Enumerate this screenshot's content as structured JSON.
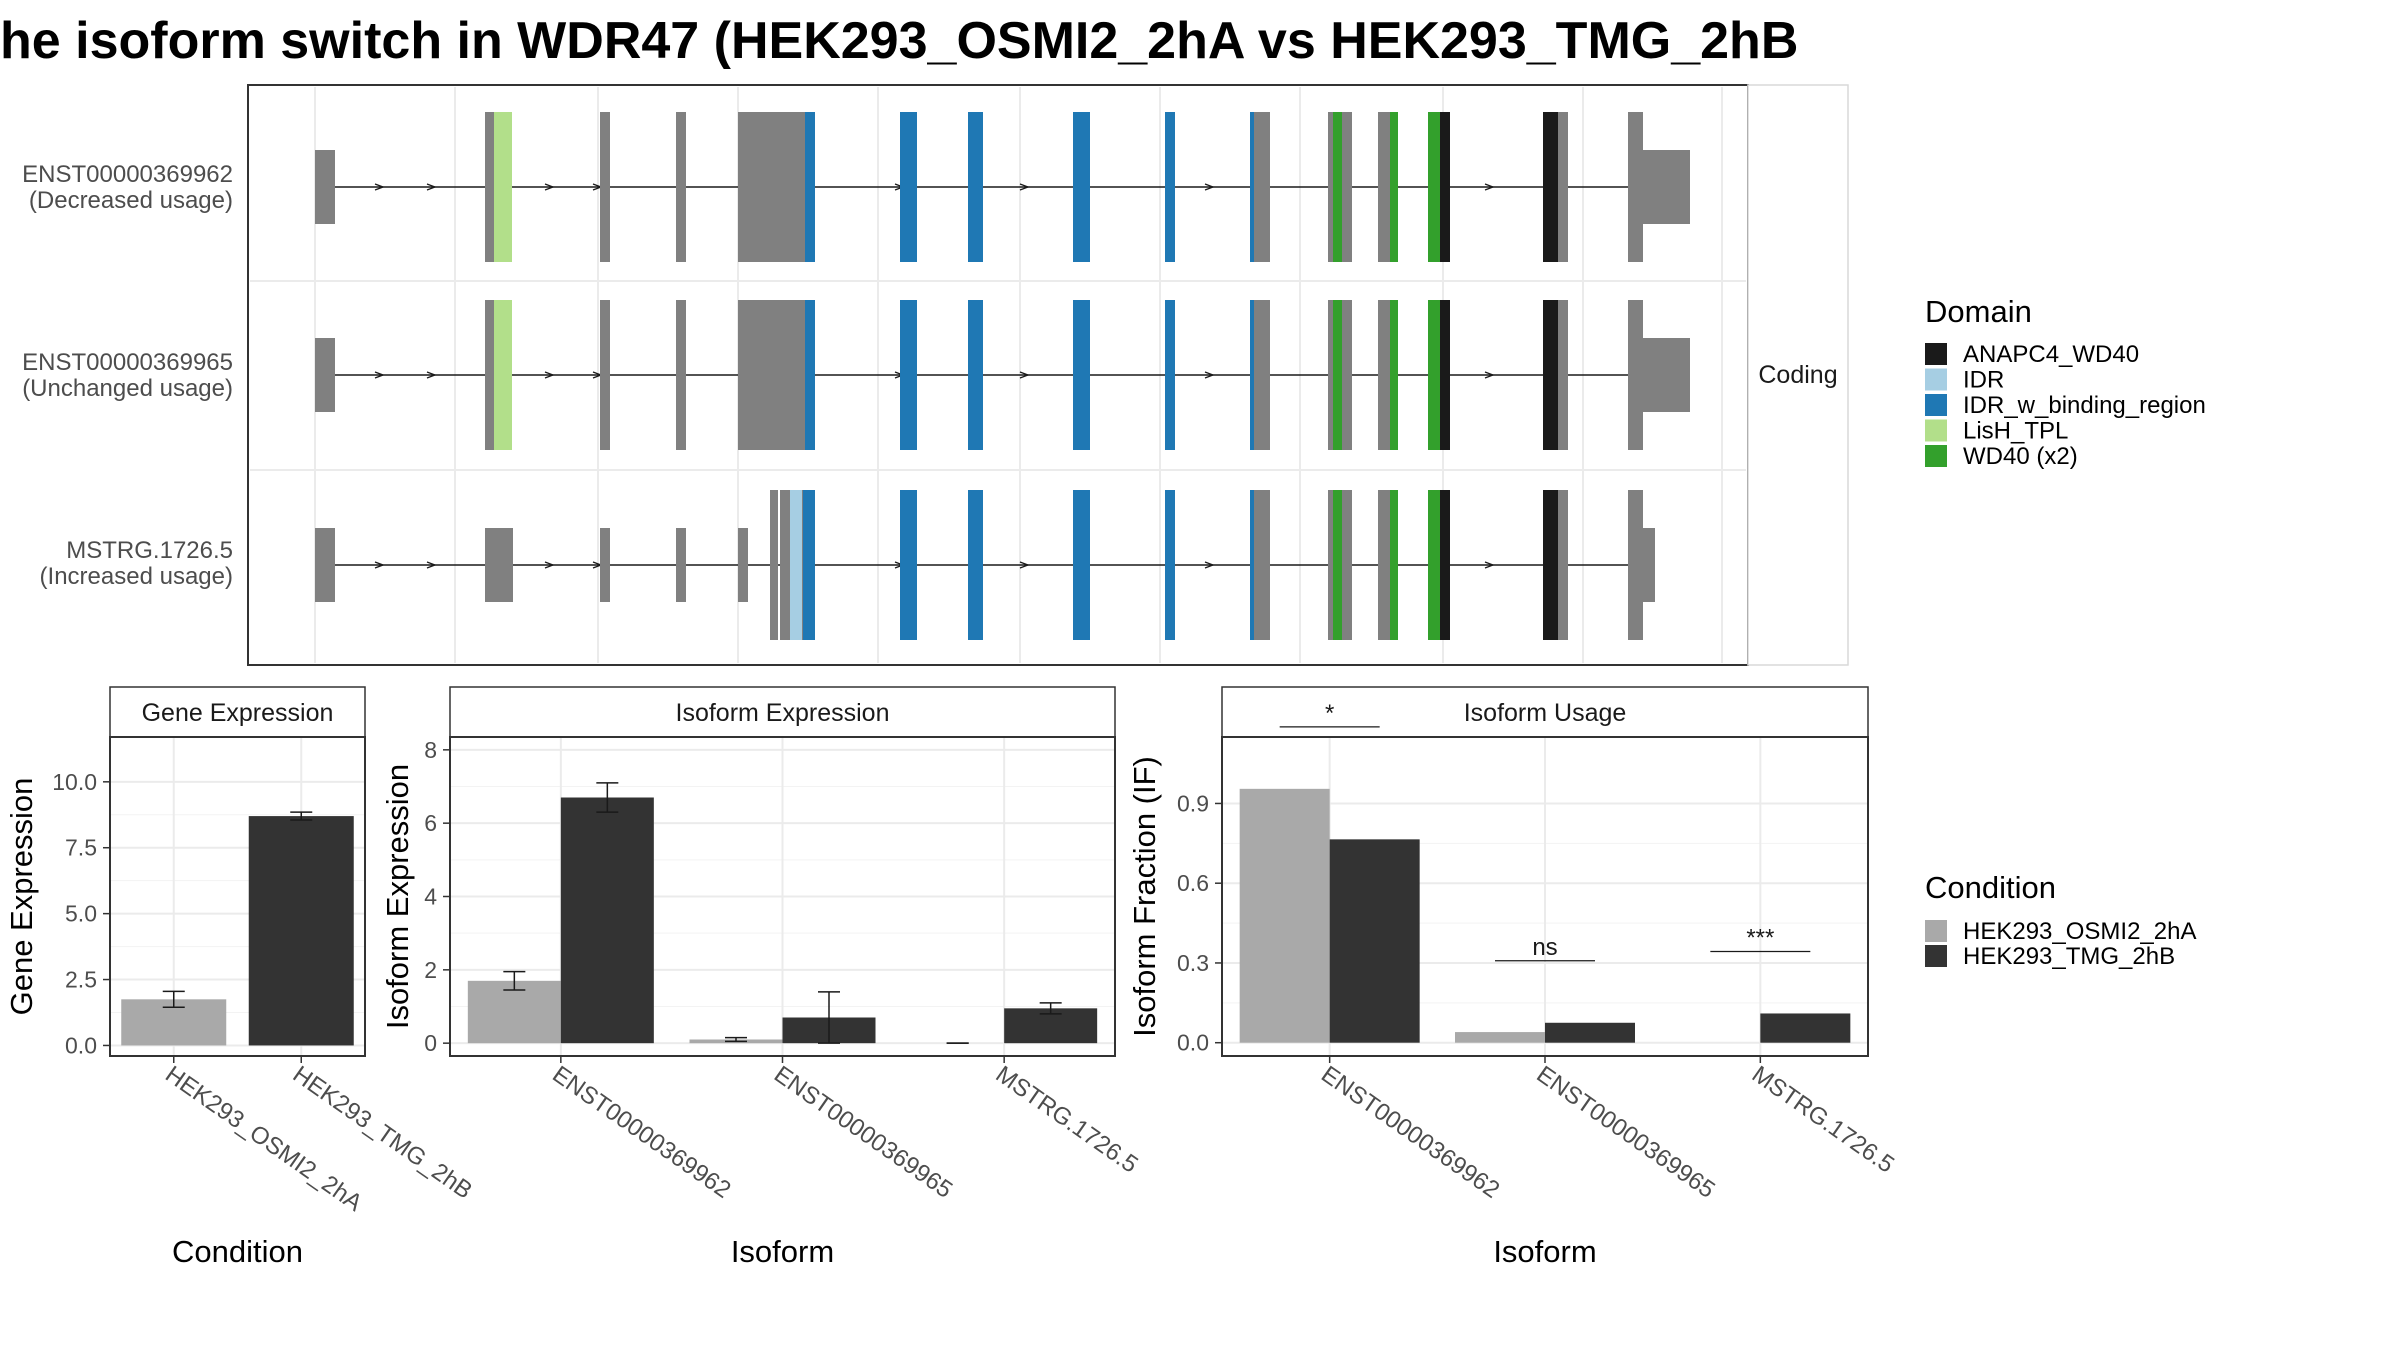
{
  "title": "he isoform switch in WDR47 (HEK293_OSMI2_2hA vs HEK293_TMG_2hB",
  "colors": {
    "exon": "#808080",
    "cond1": "#a9a9a9",
    "cond2": "#333333",
    "grid": "#ebebeb",
    "panel_border": "#333333",
    "strip_fill": "#ffffff"
  },
  "structure": {
    "strip_label": "Coding",
    "isoforms": [
      {
        "id": "ENST00000369962",
        "note": "(Decreased usage)"
      },
      {
        "id": "ENST00000369965",
        "note": "(Unchanged usage)"
      },
      {
        "id": "MSTRG.1726.5",
        "note": "(Increased usage)"
      }
    ],
    "domain_legend": {
      "title": "Domain",
      "items": [
        {
          "name": "ANAPC4_WD40",
          "color": "#1a1a1a"
        },
        {
          "name": "IDR",
          "color": "#a6cee3"
        },
        {
          "name": "IDR_w_binding_region",
          "color": "#1f78b4"
        },
        {
          "name": "LisH_TPL",
          "color": "#b2df8a"
        },
        {
          "name": "WD40 (x2)",
          "color": "#33a02c"
        }
      ]
    }
  },
  "condition_legend": {
    "title": "Condition",
    "items": [
      {
        "name": "HEK293_OSMI2_2hA",
        "color": "#a9a9a9"
      },
      {
        "name": "HEK293_TMG_2hB",
        "color": "#333333"
      }
    ]
  },
  "chart_data": [
    {
      "type": "bar",
      "title": "Gene Expression",
      "xlabel": "Condition",
      "ylabel": "Gene Expression",
      "categories": [
        "HEK293_OSMI2_2hA",
        "HEK293_TMG_2hB"
      ],
      "values": [
        1.75,
        8.7
      ],
      "errors": [
        [
          1.45,
          2.05
        ],
        [
          8.55,
          8.85
        ]
      ],
      "colors": [
        "#a9a9a9",
        "#333333"
      ],
      "ylim": [
        -0.4,
        11.7
      ],
      "yticks": [
        0.0,
        2.5,
        5.0,
        7.5,
        10.0
      ],
      "ytick_labels": [
        "0.0",
        "2.5",
        "5.0",
        "7.5",
        "10.0"
      ]
    },
    {
      "type": "bar",
      "title": "Isoform Expression",
      "xlabel": "Isoform",
      "ylabel": "Isoform Expression",
      "categories": [
        "ENST00000369962",
        "ENST00000369965",
        "MSTRG.1726.5"
      ],
      "series": [
        {
          "name": "HEK293_OSMI2_2hA",
          "values": [
            1.7,
            0.1,
            0.0
          ],
          "errors": [
            [
              1.45,
              1.95
            ],
            [
              0.05,
              0.15
            ],
            [
              0.0,
              0.0
            ]
          ]
        },
        {
          "name": "HEK293_TMG_2hB",
          "values": [
            6.7,
            0.7,
            0.95
          ],
          "errors": [
            [
              6.3,
              7.1
            ],
            [
              0.0,
              1.4
            ],
            [
              0.8,
              1.1
            ]
          ]
        }
      ],
      "ylim": [
        -0.35,
        8.35
      ],
      "yticks": [
        0,
        2,
        4,
        6,
        8
      ],
      "ytick_labels": [
        "0",
        "2",
        "4",
        "6",
        "8"
      ]
    },
    {
      "type": "bar",
      "title": "Isoform Usage",
      "xlabel": "Isoform",
      "ylabel": "Isoform Fraction (IF)",
      "categories": [
        "ENST00000369962",
        "ENST00000369965",
        "MSTRG.1726.5"
      ],
      "series": [
        {
          "name": "HEK293_OSMI2_2hA",
          "values": [
            0.955,
            0.04,
            0.0
          ]
        },
        {
          "name": "HEK293_TMG_2hB",
          "values": [
            0.765,
            0.075,
            0.11
          ]
        }
      ],
      "significance": [
        "*",
        "ns",
        "***"
      ],
      "ylim": [
        -0.05,
        1.15
      ],
      "yticks": [
        0.0,
        0.3,
        0.6,
        0.9
      ],
      "ytick_labels": [
        "0.0",
        "0.3",
        "0.6",
        "0.9"
      ]
    }
  ]
}
